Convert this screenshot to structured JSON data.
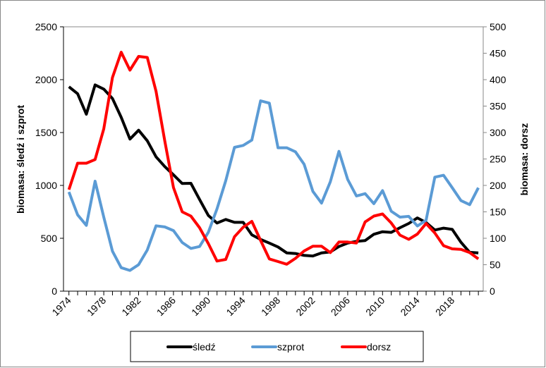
{
  "chart_data": {
    "type": "line",
    "title": "",
    "xlabel": "",
    "ylabel": "biomasa: śledź i szprot",
    "y2label": "biomasa: dorsz",
    "ylim": [
      0,
      2500
    ],
    "y2lim": [
      0,
      500
    ],
    "yticks": [
      "0",
      "500",
      "1000",
      "1500",
      "2000",
      "2500"
    ],
    "y2ticks": [
      "0",
      "50",
      "100",
      "150",
      "200",
      "250",
      "300",
      "350",
      "400",
      "450",
      "500"
    ],
    "xticks": [
      "1974",
      "1978",
      "1982",
      "1986",
      "1990",
      "1994",
      "1998",
      "2002",
      "2006",
      "2010",
      "2014",
      "2018"
    ],
    "legend_position": "bottom",
    "grid": false,
    "x": [
      1974,
      1975,
      1976,
      1977,
      1978,
      1979,
      1980,
      1981,
      1982,
      1983,
      1984,
      1985,
      1986,
      1987,
      1988,
      1989,
      1990,
      1991,
      1992,
      1993,
      1994,
      1995,
      1996,
      1997,
      1998,
      1999,
      2000,
      2001,
      2002,
      2003,
      2004,
      2005,
      2006,
      2007,
      2008,
      2009,
      2010,
      2011,
      2012,
      2013,
      2014,
      2015,
      2016,
      2017,
      2018,
      2019,
      2020,
      2021
    ],
    "series": [
      {
        "name": "śledź",
        "axis": "left",
        "color": "#000000",
        "values": [
          1933,
          1867,
          1673,
          1951,
          1911,
          1822,
          1644,
          1438,
          1522,
          1422,
          1271,
          1178,
          1100,
          1018,
          1020,
          867,
          716,
          644,
          678,
          651,
          651,
          533,
          489,
          455,
          418,
          362,
          356,
          338,
          333,
          362,
          371,
          422,
          455,
          471,
          478,
          538,
          562,
          556,
          600,
          640,
          693,
          649,
          578,
          596,
          584,
          462,
          367,
          362
        ]
      },
      {
        "name": "szprot",
        "axis": "left",
        "color": "#5b9bd5",
        "values": [
          938,
          722,
          622,
          1040,
          700,
          378,
          222,
          196,
          251,
          389,
          618,
          607,
          573,
          460,
          404,
          422,
          556,
          778,
          1044,
          1360,
          1378,
          1429,
          1800,
          1778,
          1356,
          1356,
          1318,
          1200,
          944,
          833,
          1033,
          1322,
          1056,
          900,
          922,
          827,
          951,
          756,
          700,
          707,
          616,
          671,
          1078,
          1096,
          978,
          856,
          818,
          978
        ]
      },
      {
        "name": "dorsz",
        "axis": "right",
        "color": "#ff0000",
        "values": [
          192,
          242,
          242,
          249,
          307,
          404,
          452,
          418,
          444,
          442,
          378,
          284,
          196,
          150,
          142,
          120,
          90,
          57,
          60,
          103,
          121,
          132,
          96,
          61,
          56,
          51,
          62,
          76,
          85,
          85,
          73,
          93,
          93,
          91,
          131,
          142,
          146,
          129,
          106,
          98,
          108,
          128,
          110,
          86,
          80,
          79,
          73,
          61
        ]
      }
    ]
  }
}
